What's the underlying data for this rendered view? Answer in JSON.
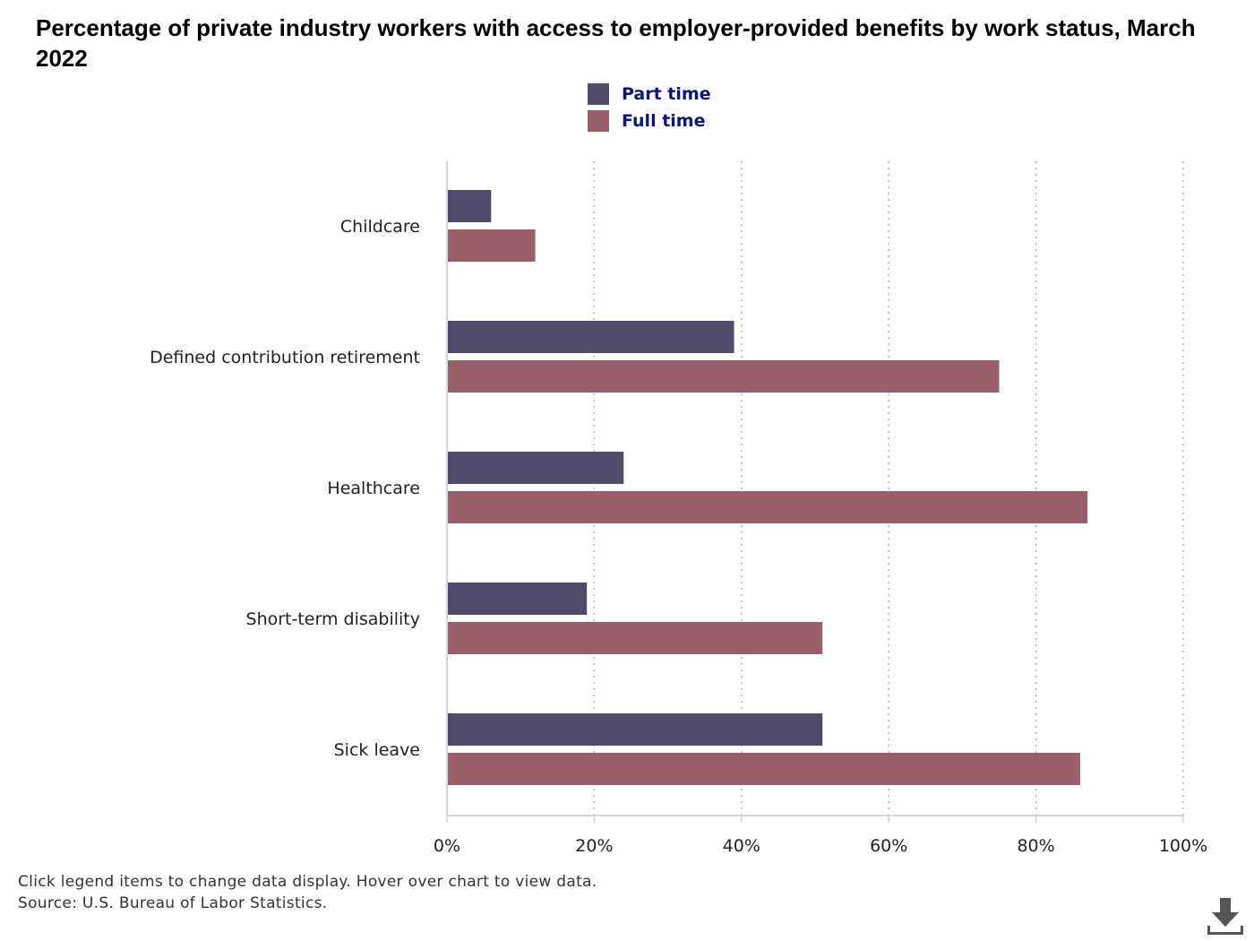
{
  "title": "Percentage of private industry workers with access to employer-provided benefits by work status, March 2022",
  "legend": [
    {
      "label": "Part time",
      "color": "#4f4b69"
    },
    {
      "label": "Full time",
      "color": "#99606c"
    }
  ],
  "notes": {
    "instruction": "Click legend items to change data display. Hover over chart to view data.",
    "source": "Source: U.S. Bureau of Labor Statistics."
  },
  "download": {
    "icon": "download-icon"
  },
  "chart_data": {
    "type": "bar",
    "orientation": "horizontal",
    "title": "Percentage of private industry workers with access to employer-provided benefits by work status, March 2022",
    "categories": [
      "Childcare",
      "Defined contribution retirement",
      "Healthcare",
      "Short-term disability",
      "Sick leave"
    ],
    "series": [
      {
        "name": "Part time",
        "color": "#4f4b69",
        "values": [
          6,
          39,
          24,
          19,
          51
        ]
      },
      {
        "name": "Full time",
        "color": "#99606c",
        "values": [
          12,
          75,
          87,
          51,
          86
        ]
      }
    ],
    "xlim": [
      0,
      100
    ],
    "xticks": [
      0,
      20,
      40,
      60,
      80,
      100
    ],
    "xtick_labels": [
      "0%",
      "20%",
      "40%",
      "60%",
      "80%",
      "100%"
    ],
    "grid": "vertical dotted",
    "legend_position": "top-center"
  }
}
